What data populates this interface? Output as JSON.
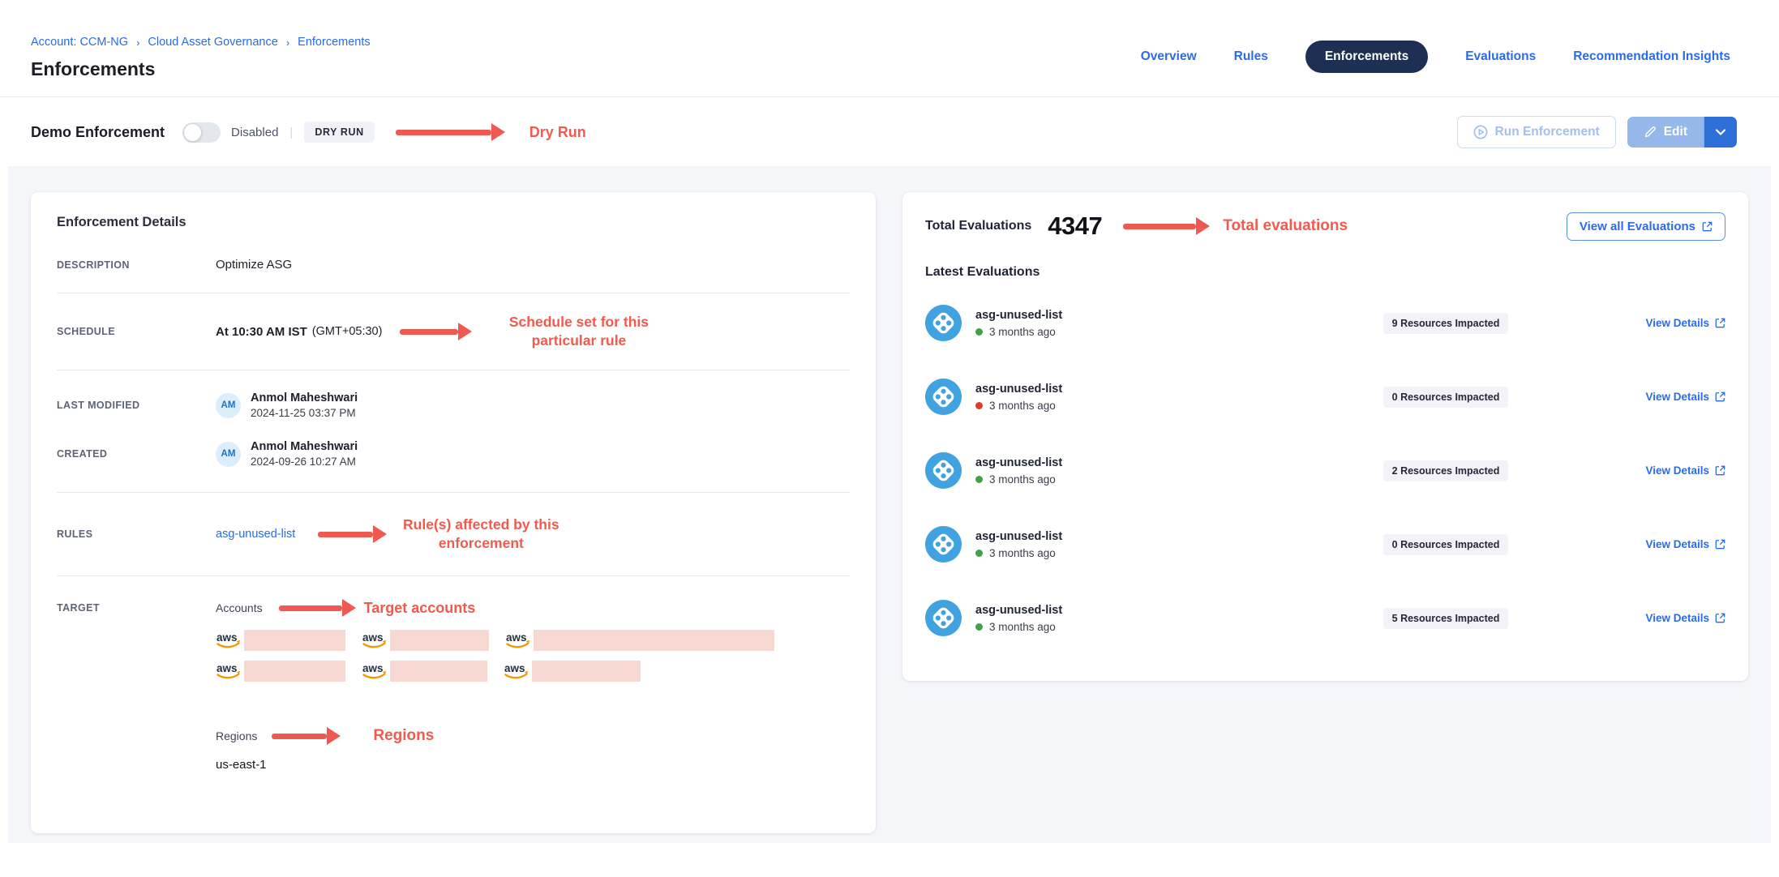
{
  "colors": {
    "link_blue": "#2a6bea",
    "active_pill_navy": "#1d3054",
    "annotation_red": "#f05a4f",
    "status_green": "#43a047",
    "status_red": "#e0392e",
    "redaction_pink": "#f8d8d3",
    "aws_orange": "#f79400",
    "custodian_blue": "#41a2e0"
  },
  "breadcrumb": {
    "separator": "›",
    "items": [
      "Account: CCM-NG",
      "Cloud Asset Governance",
      "Enforcements"
    ]
  },
  "page": {
    "title": "Enforcements"
  },
  "nav": {
    "tabs": [
      {
        "label": "Overview",
        "active": false
      },
      {
        "label": "Rules",
        "active": false
      },
      {
        "label": "Enforcements",
        "active": true
      },
      {
        "label": "Evaluations",
        "active": false
      },
      {
        "label": "Recommendation Insights",
        "active": false
      }
    ]
  },
  "toolbar": {
    "enforcement_name": "Demo Enforcement",
    "toggle_state": "off",
    "toggle_label": "Disabled",
    "badge": "DRY RUN",
    "annotation": "Dry Run",
    "run_button_label": "Run Enforcement",
    "edit_button_label": "Edit"
  },
  "details": {
    "title": "Enforcement Details",
    "description": {
      "label": "DESCRIPTION",
      "value": "Optimize ASG"
    },
    "schedule": {
      "label": "SCHEDULE",
      "value_bold": "At 10:30 AM IST",
      "value_suffix": "(GMT+05:30)",
      "annotation": "Schedule set for this particular rule"
    },
    "last_modified": {
      "label": "LAST MODIFIED",
      "initials": "AM",
      "name": "Anmol Maheshwari",
      "date": "2024-11-25 03:37 PM"
    },
    "created": {
      "label": "CREATED",
      "initials": "AM",
      "name": "Anmol Maheshwari",
      "date": "2024-09-26 10:27 AM"
    },
    "rules": {
      "label": "RULES",
      "link": "asg-unused-list",
      "annotation": "Rule(s) affected by this enforcement"
    },
    "target": {
      "label": "TARGET",
      "accounts_label": "Accounts",
      "accounts_annotation": "Target accounts",
      "account_redaction_rows": [
        [
          125,
          122,
          297
        ],
        [
          125,
          120,
          134
        ]
      ],
      "regions_label": "Regions",
      "regions_annotation": "Regions",
      "region_value": "us-east-1"
    }
  },
  "evaluations": {
    "total_label": "Total Evaluations",
    "total_value": "4347",
    "annotation": "Total evaluations",
    "view_all_label": "View all Evaluations",
    "latest_label": "Latest Evaluations",
    "view_details_label": "View Details",
    "items": [
      {
        "name": "asg-unused-list",
        "time": "3 months ago",
        "impacted": "9 Resources Impacted",
        "status": "green",
        "status_color": "#43a047"
      },
      {
        "name": "asg-unused-list",
        "time": "3 months ago",
        "impacted": "0 Resources Impacted",
        "status": "red",
        "status_color": "#e0392e"
      },
      {
        "name": "asg-unused-list",
        "time": "3 months ago",
        "impacted": "2 Resources Impacted",
        "status": "green",
        "status_color": "#43a047"
      },
      {
        "name": "asg-unused-list",
        "time": "3 months ago",
        "impacted": "0 Resources Impacted",
        "status": "green",
        "status_color": "#43a047"
      },
      {
        "name": "asg-unused-list",
        "time": "3 months ago",
        "impacted": "5 Resources Impacted",
        "status": "green",
        "status_color": "#43a047"
      }
    ]
  }
}
